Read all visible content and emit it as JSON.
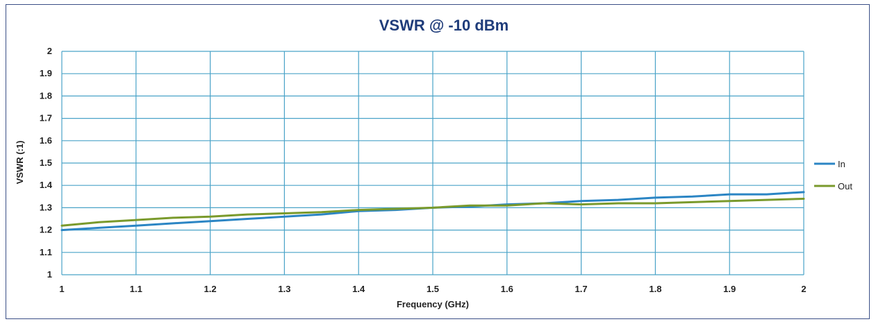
{
  "colors": {
    "title": "#1f3c7a",
    "grid": "#4aa3c8",
    "frame": "#3a4f86",
    "in": "#2b85c4",
    "out": "#7a9a2c"
  },
  "chart_data": {
    "type": "line",
    "title": "VSWR @ -10 dBm",
    "xlabel": "Frequency (GHz)",
    "ylabel": "VSWR (:1)",
    "xlim": [
      1,
      2
    ],
    "ylim": [
      1,
      2
    ],
    "x_ticks": [
      "1",
      "1.1",
      "1.2",
      "1.3",
      "1.4",
      "1.5",
      "1.6",
      "1.7",
      "1.8",
      "1.9",
      "2"
    ],
    "y_ticks": [
      "2",
      "1.9",
      "1.8",
      "1.7",
      "1.6",
      "1.5",
      "1.4",
      "1.3",
      "1.2",
      "1.1",
      "1"
    ],
    "grid": true,
    "legend_position": "right",
    "series": [
      {
        "name": "In",
        "color": "#2b85c4",
        "x": [
          1.0,
          1.05,
          1.1,
          1.15,
          1.2,
          1.25,
          1.3,
          1.35,
          1.4,
          1.45,
          1.5,
          1.55,
          1.6,
          1.65,
          1.7,
          1.75,
          1.8,
          1.85,
          1.9,
          1.95,
          2.0
        ],
        "y": [
          1.2,
          1.21,
          1.22,
          1.23,
          1.24,
          1.25,
          1.26,
          1.27,
          1.285,
          1.29,
          1.3,
          1.305,
          1.315,
          1.32,
          1.33,
          1.335,
          1.345,
          1.35,
          1.36,
          1.36,
          1.37
        ]
      },
      {
        "name": "Out",
        "color": "#7a9a2c",
        "x": [
          1.0,
          1.05,
          1.1,
          1.15,
          1.2,
          1.25,
          1.3,
          1.35,
          1.4,
          1.45,
          1.5,
          1.55,
          1.6,
          1.65,
          1.7,
          1.75,
          1.8,
          1.85,
          1.9,
          1.95,
          2.0
        ],
        "y": [
          1.22,
          1.235,
          1.245,
          1.255,
          1.26,
          1.27,
          1.275,
          1.28,
          1.29,
          1.295,
          1.3,
          1.31,
          1.31,
          1.32,
          1.315,
          1.32,
          1.32,
          1.325,
          1.33,
          1.335,
          1.34
        ]
      }
    ]
  }
}
